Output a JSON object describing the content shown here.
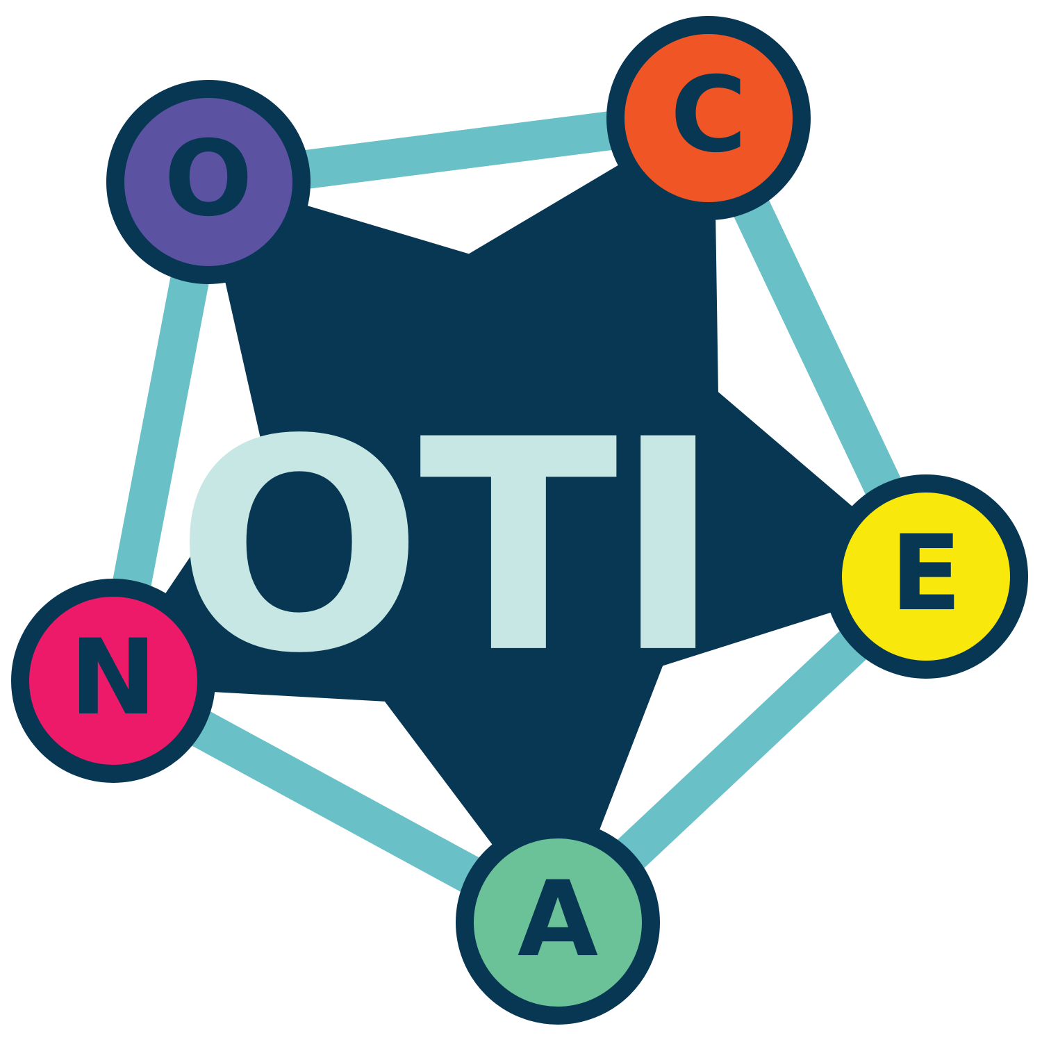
{
  "logo": {
    "center_text": "OTI",
    "colors": {
      "background": "#ffffff",
      "ring": "#69c1c7",
      "star": "#083754",
      "node_outline": "#083754",
      "center_text": "#c6e7e3",
      "letter": "#083754"
    },
    "nodes": [
      {
        "id": "o",
        "letter": "O",
        "fill": "#5b52a2"
      },
      {
        "id": "c",
        "letter": "C",
        "fill": "#f05625"
      },
      {
        "id": "e",
        "letter": "E",
        "fill": "#f8e80b"
      },
      {
        "id": "a",
        "letter": "A",
        "fill": "#6bc198"
      },
      {
        "id": "n",
        "letter": "N",
        "fill": "#ec1a69"
      }
    ]
  }
}
